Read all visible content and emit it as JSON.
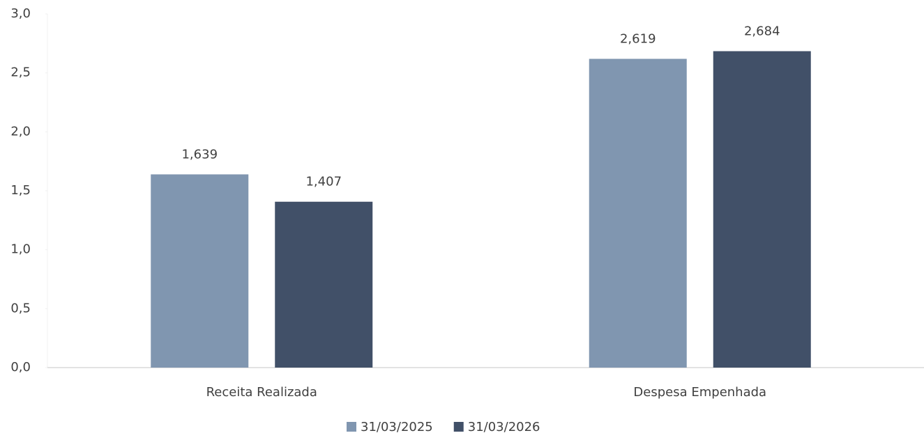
{
  "chart_data": {
    "type": "bar",
    "categories": [
      "Receita Realizada",
      "Despesa Empenhada"
    ],
    "series": [
      {
        "name": "31/03/2025",
        "color": "#8096b0",
        "values": [
          1.639,
          2.619
        ],
        "value_labels": [
          "1,639",
          "2,619"
        ]
      },
      {
        "name": "31/03/2026",
        "color": "#415068",
        "values": [
          1.407,
          2.684
        ],
        "value_labels": [
          "1,407",
          "2,684"
        ]
      }
    ],
    "ylim": [
      0,
      3
    ],
    "yticks": [
      {
        "value": 0,
        "label": "0,0"
      },
      {
        "value": 0.5,
        "label": "0,5"
      },
      {
        "value": 1,
        "label": "1,0"
      },
      {
        "value": 1.5,
        "label": "1,5"
      },
      {
        "value": 2,
        "label": "2,0"
      },
      {
        "value": 2.5,
        "label": "2,5"
      },
      {
        "value": 3,
        "label": "3,0"
      }
    ],
    "legend": "bottom"
  }
}
